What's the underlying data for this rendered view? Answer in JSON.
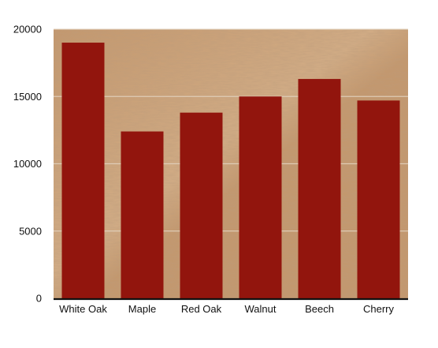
{
  "chart_data": {
    "type": "bar",
    "title": "",
    "xlabel": "",
    "ylabel": "",
    "categories": [
      "White Oak",
      "Maple",
      "Red Oak",
      "Walnut",
      "Beech",
      "Cherry"
    ],
    "values": [
      19000,
      12400,
      13800,
      15000,
      16300,
      14700
    ],
    "ylim": [
      0,
      20000
    ],
    "yticks": [
      "0",
      "5000",
      "10000",
      "15000",
      "20000"
    ],
    "grid": true,
    "legend": "none",
    "colors": {
      "bar": "#92150d",
      "background": "#c4976c",
      "axis": "#111111",
      "grid": "#e3d3c0"
    }
  }
}
